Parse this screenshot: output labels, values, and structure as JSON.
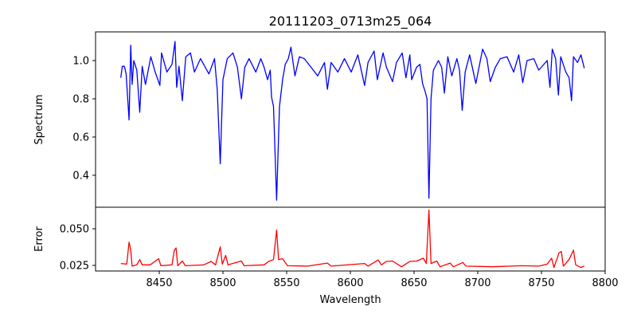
{
  "chart_data": [
    {
      "type": "line",
      "title": "20111203_0713m25_064",
      "xlabel": "",
      "ylabel": "Spectrum",
      "xlim": [
        8400,
        8800
      ],
      "ylim": [
        0.233,
        1.15
      ],
      "yticks": [
        "0.4",
        "0.6",
        "0.8",
        "1.0"
      ],
      "color": "#0000ff",
      "series": [
        {
          "name": "Spectrum",
          "points": [
            [
              8419.8,
              0.91
            ],
            [
              8421,
              0.97
            ],
            [
              8422.6,
              0.97
            ],
            [
              8424,
              0.93
            ],
            [
              8426.3,
              0.69
            ],
            [
              8427.6,
              1.08
            ],
            [
              8428.7,
              0.875
            ],
            [
              8430,
              1.0
            ],
            [
              8432.4,
              0.95
            ],
            [
              8434.7,
              0.73
            ],
            [
              8436.6,
              0.97
            ],
            [
              8439.2,
              0.875
            ],
            [
              8443.4,
              1.02
            ],
            [
              8446.8,
              0.94
            ],
            [
              8450.5,
              0.87
            ],
            [
              8451.8,
              1.04
            ],
            [
              8456,
              0.94
            ],
            [
              8460,
              0.98
            ],
            [
              8462.4,
              1.1
            ],
            [
              8463.7,
              0.86
            ],
            [
              8465.5,
              0.97
            ],
            [
              8468.1,
              0.79
            ],
            [
              8470.8,
              1.02
            ],
            [
              8474.5,
              1.04
            ],
            [
              8477.6,
              0.94
            ],
            [
              8482.4,
              1.01
            ],
            [
              8489,
              0.93
            ],
            [
              8493.4,
              1.01
            ],
            [
              8495.5,
              0.85
            ],
            [
              8497.9,
              0.46
            ],
            [
              8500,
              0.9
            ],
            [
              8503.4,
              1.01
            ],
            [
              8507.9,
              1.04
            ],
            [
              8511.4,
              0.965
            ],
            [
              8514.5,
              0.8
            ],
            [
              8517.1,
              0.965
            ],
            [
              8520.5,
              1.01
            ],
            [
              8525.8,
              0.94
            ],
            [
              8529.7,
              1.01
            ],
            [
              8532.3,
              0.965
            ],
            [
              8535,
              0.9
            ],
            [
              8537.1,
              0.95
            ],
            [
              8538.1,
              0.81
            ],
            [
              8539.7,
              0.76
            ],
            [
              8542.1,
              0.27
            ],
            [
              8544.4,
              0.76
            ],
            [
              8546.8,
              0.9
            ],
            [
              8548.9,
              0.98
            ],
            [
              8551.3,
              1.01
            ],
            [
              8553.4,
              1.07
            ],
            [
              8556.5,
              0.92
            ],
            [
              8560,
              1.02
            ],
            [
              8563.9,
              1.01
            ],
            [
              8569.1,
              0.965
            ],
            [
              8574.4,
              0.92
            ],
            [
              8579.7,
              0.99
            ],
            [
              8582,
              0.85
            ],
            [
              8584.9,
              0.99
            ],
            [
              8590.2,
              0.94
            ],
            [
              8595.4,
              1.01
            ],
            [
              8600.7,
              0.94
            ],
            [
              8605.9,
              1.03
            ],
            [
              8611.2,
              0.87
            ],
            [
              8613.9,
              0.99
            ],
            [
              8618.6,
              1.05
            ],
            [
              8621.2,
              0.9
            ],
            [
              8625.7,
              1.04
            ],
            [
              8628.3,
              0.965
            ],
            [
              8633.1,
              0.89
            ],
            [
              8636.2,
              0.99
            ],
            [
              8640.7,
              1.04
            ],
            [
              8643.6,
              0.91
            ],
            [
              8646.7,
              1.03
            ],
            [
              8648.1,
              0.9
            ],
            [
              8652,
              0.965
            ],
            [
              8654.6,
              0.98
            ],
            [
              8656.7,
              0.88
            ],
            [
              8658.6,
              0.84
            ],
            [
              8660.2,
              0.8
            ],
            [
              8661.7,
              0.28
            ],
            [
              8663.3,
              0.8
            ],
            [
              8665.2,
              0.95
            ],
            [
              8669.1,
              1.0
            ],
            [
              8671.7,
              0.965
            ],
            [
              8673.8,
              0.83
            ],
            [
              8676.5,
              1.02
            ],
            [
              8679.6,
              0.92
            ],
            [
              8683.6,
              1.01
            ],
            [
              8685.7,
              0.95
            ],
            [
              8687.8,
              0.74
            ],
            [
              8690.1,
              0.94
            ],
            [
              8693.6,
              1.03
            ],
            [
              8698.5,
              0.88
            ],
            [
              8703.8,
              1.06
            ],
            [
              8707.2,
              1.01
            ],
            [
              8709.8,
              0.89
            ],
            [
              8713.8,
              0.965
            ],
            [
              8717.7,
              1.01
            ],
            [
              8723,
              1.02
            ],
            [
              8728.2,
              0.94
            ],
            [
              8732.2,
              1.03
            ],
            [
              8735.3,
              0.885
            ],
            [
              8738.7,
              1.0
            ],
            [
              8744,
              1.01
            ],
            [
              8747.9,
              0.95
            ],
            [
              8754.5,
              1.0
            ],
            [
              8756.7,
              0.86
            ],
            [
              8758.5,
              1.06
            ],
            [
              8761.1,
              1.01
            ],
            [
              8763.3,
              0.82
            ],
            [
              8765.1,
              1.02
            ],
            [
              8769.1,
              0.94
            ],
            [
              8771.7,
              0.91
            ],
            [
              8773.6,
              0.79
            ],
            [
              8775.1,
              1.02
            ],
            [
              8778.3,
              0.99
            ],
            [
              8781,
              1.03
            ],
            [
              8783.6,
              0.96
            ]
          ]
        }
      ]
    },
    {
      "type": "line",
      "xlabel": "Wavelength",
      "ylabel": "Error",
      "xlim": [
        8400,
        8800
      ],
      "ylim": [
        0.0212,
        0.0647
      ],
      "xticks": [
        "8450",
        "8500",
        "8550",
        "8600",
        "8650",
        "8700",
        "8750",
        "8800"
      ],
      "yticks": [
        "0.025",
        "0.050"
      ],
      "color": "#ff0000",
      "series": [
        {
          "name": "Error",
          "points": [
            [
              8419.8,
              0.0263
            ],
            [
              8424.5,
              0.0259
            ],
            [
              8426.3,
              0.0409
            ],
            [
              8427.6,
              0.0354
            ],
            [
              8428.7,
              0.0245
            ],
            [
              8432.4,
              0.0254
            ],
            [
              8434.7,
              0.029
            ],
            [
              8436.6,
              0.0254
            ],
            [
              8442.9,
              0.0254
            ],
            [
              8449.5,
              0.0296
            ],
            [
              8451.3,
              0.0248
            ],
            [
              8460,
              0.0254
            ],
            [
              8461.8,
              0.0354
            ],
            [
              8463.2,
              0.0369
            ],
            [
              8464.5,
              0.0248
            ],
            [
              8468.1,
              0.028
            ],
            [
              8470.5,
              0.0248
            ],
            [
              8485,
              0.0254
            ],
            [
              8490.7,
              0.0277
            ],
            [
              8494.2,
              0.0254
            ],
            [
              8497.9,
              0.0376
            ],
            [
              8499.5,
              0.0259
            ],
            [
              8502.1,
              0.0318
            ],
            [
              8504,
              0.0254
            ],
            [
              8514.5,
              0.028
            ],
            [
              8516.6,
              0.0248
            ],
            [
              8532.3,
              0.0254
            ],
            [
              8535.8,
              0.0277
            ],
            [
              8539.7,
              0.029
            ],
            [
              8542.1,
              0.0491
            ],
            [
              8543.7,
              0.029
            ],
            [
              8546.8,
              0.0296
            ],
            [
              8550.7,
              0.0248
            ],
            [
              8566.5,
              0.0245
            ],
            [
              8582,
              0.0266
            ],
            [
              8584.9,
              0.0245
            ],
            [
              8611.2,
              0.0263
            ],
            [
              8613.9,
              0.0245
            ],
            [
              8621.8,
              0.0287
            ],
            [
              8624.4,
              0.0254
            ],
            [
              8628.3,
              0.0277
            ],
            [
              8633.1,
              0.028
            ],
            [
              8640.2,
              0.0241
            ],
            [
              8646.7,
              0.0277
            ],
            [
              8652,
              0.028
            ],
            [
              8657.3,
              0.0299
            ],
            [
              8659.6,
              0.0263
            ],
            [
              8661.7,
              0.0628
            ],
            [
              8663.3,
              0.0263
            ],
            [
              8667.8,
              0.028
            ],
            [
              8670.4,
              0.0241
            ],
            [
              8678.3,
              0.0266
            ],
            [
              8680.9,
              0.0241
            ],
            [
              8688.3,
              0.027
            ],
            [
              8690.6,
              0.0245
            ],
            [
              8711.2,
              0.0241
            ],
            [
              8734.8,
              0.0248
            ],
            [
              8748,
              0.0245
            ],
            [
              8754.5,
              0.0259
            ],
            [
              8758,
              0.0299
            ],
            [
              8759.8,
              0.0236
            ],
            [
              8763.8,
              0.0336
            ],
            [
              8765.6,
              0.0345
            ],
            [
              8767.2,
              0.0245
            ],
            [
              8771.7,
              0.029
            ],
            [
              8775.1,
              0.0354
            ],
            [
              8776.9,
              0.0254
            ],
            [
              8780.9,
              0.0236
            ],
            [
              8783.6,
              0.0245
            ]
          ]
        }
      ]
    }
  ]
}
